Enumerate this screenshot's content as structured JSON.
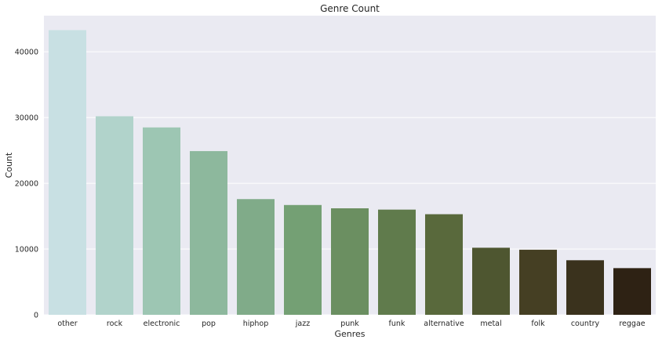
{
  "chart_data": {
    "type": "bar",
    "title": "Genre Count",
    "xlabel": "Genres",
    "ylabel": "Count",
    "categories": [
      "other",
      "rock",
      "electronic",
      "pop",
      "hiphop",
      "jazz",
      "punk",
      "funk",
      "alternative",
      "metal",
      "folk",
      "country",
      "reggae"
    ],
    "values": [
      43300,
      30200,
      28500,
      24900,
      17600,
      16700,
      16200,
      16000,
      15300,
      10200,
      9900,
      8300,
      7100
    ],
    "ylim": [
      0,
      45500
    ],
    "yticks": [
      0,
      10000,
      20000,
      30000,
      40000
    ],
    "grid": true,
    "colors": {
      "background": "#eaeaf2",
      "grid": "#ffffff",
      "bars": [
        "#c8e0e3",
        "#b1d3cb",
        "#9dc6b3",
        "#8db89d",
        "#80ab89",
        "#74a074",
        "#6b8f61",
        "#607b4c",
        "#59693c",
        "#4e5630",
        "#453f23",
        "#3a321d",
        "#2e2214"
      ]
    }
  }
}
